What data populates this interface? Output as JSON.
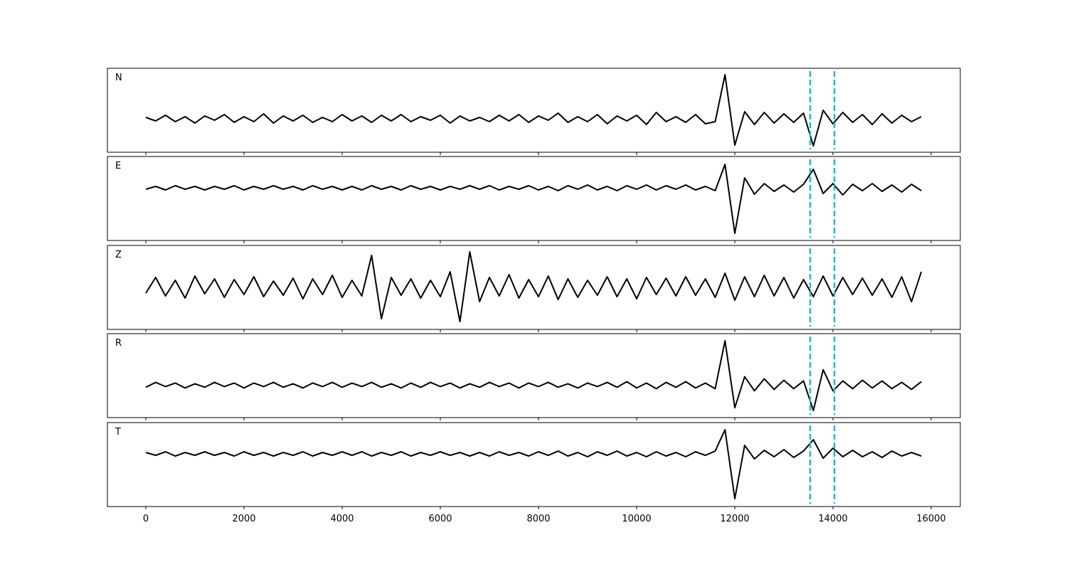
{
  "chart_data": [
    {
      "type": "line",
      "title": "N",
      "color": "#000000",
      "vline_color": "#17becf",
      "vline_style": "dashed",
      "vlines": [
        13536,
        14029
      ],
      "xlim": [
        -783,
        16594
      ],
      "ylim": [
        -47,
        71
      ],
      "xticks": [
        0,
        2000,
        4000,
        6000,
        8000,
        10000,
        12000,
        14000,
        16000
      ],
      "x": [
        0,
        200,
        400,
        600,
        800,
        1000,
        1200,
        1400,
        1600,
        1800,
        2000,
        2200,
        2400,
        2600,
        2800,
        3000,
        3200,
        3400,
        3600,
        3800,
        4000,
        4200,
        4400,
        4600,
        4800,
        5000,
        5200,
        5400,
        5600,
        5800,
        6000,
        6200,
        6400,
        6600,
        6800,
        7000,
        7200,
        7400,
        7600,
        7800,
        8000,
        8200,
        8400,
        8600,
        8800,
        9000,
        9200,
        9400,
        9600,
        9800,
        10000,
        10200,
        10400,
        10600,
        10800,
        11000,
        11200,
        11400,
        11600,
        11800,
        12000,
        12200,
        12400,
        12600,
        12800,
        13000,
        13200,
        13400,
        13600,
        13800,
        14000,
        14200,
        14400,
        14600,
        14800,
        15000,
        15200,
        15400,
        15600,
        15800
      ],
      "values": [
        2,
        -3,
        5,
        -4,
        3,
        -6,
        4,
        -2,
        6,
        -5,
        3,
        -4,
        7,
        -6,
        4,
        -3,
        5,
        -5,
        2,
        -4,
        6,
        -3,
        4,
        -5,
        5,
        -3,
        6,
        -4,
        3,
        -2,
        5,
        -6,
        4,
        -3,
        2,
        -4,
        5,
        -3,
        6,
        -5,
        4,
        -2,
        8,
        -5,
        3,
        -4,
        6,
        -7,
        4,
        -3,
        5,
        -8,
        9,
        -4,
        3,
        -5,
        6,
        -7,
        -4,
        62,
        -37,
        10,
        -8,
        9,
        -6,
        7,
        -5,
        8,
        -38,
        12,
        -7,
        9,
        -5,
        6,
        -8,
        7,
        -6,
        5,
        -4,
        3
      ]
    },
    {
      "type": "line",
      "title": "E",
      "color": "#000000",
      "vline_color": "#17becf",
      "vline_style": "dashed",
      "vlines": [
        13536,
        14029
      ],
      "xlim": [
        -783,
        16594
      ],
      "ylim": [
        -74,
        44
      ],
      "xticks": [
        0,
        2000,
        4000,
        6000,
        8000,
        10000,
        12000,
        14000,
        16000
      ],
      "x": [
        0,
        200,
        400,
        600,
        800,
        1000,
        1200,
        1400,
        1600,
        1800,
        2000,
        2200,
        2400,
        2600,
        2800,
        3000,
        3200,
        3400,
        3600,
        3800,
        4000,
        4200,
        4400,
        4600,
        4800,
        5000,
        5200,
        5400,
        5600,
        5800,
        6000,
        6200,
        6400,
        6600,
        6800,
        7000,
        7200,
        7400,
        7600,
        7800,
        8000,
        8200,
        8400,
        8600,
        8800,
        9000,
        9200,
        9400,
        9600,
        9800,
        10000,
        10200,
        10400,
        10600,
        10800,
        11000,
        11200,
        11400,
        11600,
        11800,
        12000,
        12200,
        12400,
        12600,
        12800,
        13000,
        13200,
        13400,
        13600,
        13800,
        14000,
        14200,
        14400,
        14600,
        14800,
        15000,
        15200,
        15400,
        15600,
        15800
      ],
      "values": [
        -2,
        2,
        -3,
        3,
        -2,
        2,
        -3,
        2,
        -2,
        3,
        -3,
        2,
        -2,
        3,
        -2,
        2,
        -3,
        3,
        -2,
        2,
        -3,
        2,
        -3,
        3,
        -2,
        2,
        -3,
        3,
        -2,
        2,
        -3,
        2,
        -2,
        3,
        -2,
        3,
        -3,
        2,
        -2,
        3,
        -3,
        2,
        -4,
        3,
        -2,
        4,
        -3,
        2,
        -4,
        3,
        -2,
        4,
        -3,
        3,
        -2,
        4,
        -3,
        2,
        -4,
        33,
        -64,
        14,
        -9,
        6,
        -5,
        4,
        -6,
        5,
        26,
        -8,
        6,
        -10,
        5,
        -4,
        6,
        -5,
        4,
        -6,
        5,
        -4
      ]
    },
    {
      "type": "line",
      "title": "Z",
      "color": "#000000",
      "vline_color": "#17becf",
      "vline_style": "dashed",
      "vlines": [
        13536,
        14029
      ],
      "xlim": [
        -783,
        16594
      ],
      "ylim": [
        -59,
        59
      ],
      "xticks": [
        0,
        2000,
        4000,
        6000,
        8000,
        10000,
        12000,
        14000,
        16000
      ],
      "x": [
        0,
        200,
        400,
        600,
        800,
        1000,
        1200,
        1400,
        1600,
        1800,
        2000,
        2200,
        2400,
        2600,
        2800,
        3000,
        3200,
        3400,
        3600,
        3800,
        4000,
        4200,
        4400,
        4600,
        4800,
        5000,
        5200,
        5400,
        5600,
        5800,
        6000,
        6200,
        6400,
        6600,
        6800,
        7000,
        7200,
        7400,
        7600,
        7800,
        8000,
        8200,
        8400,
        8600,
        8800,
        9000,
        9200,
        9400,
        9600,
        9800,
        10000,
        10200,
        10400,
        10600,
        10800,
        11000,
        11200,
        11400,
        11600,
        11800,
        12000,
        12200,
        12400,
        12600,
        12800,
        13000,
        13200,
        13400,
        13600,
        13800,
        14000,
        14200,
        14400,
        14600,
        14800,
        15000,
        15200,
        15400,
        15600,
        15800
      ],
      "values": [
        -8,
        14,
        -12,
        10,
        -15,
        16,
        -9,
        12,
        -14,
        11,
        -10,
        15,
        -13,
        9,
        -11,
        13,
        -16,
        12,
        -10,
        17,
        -14,
        10,
        -12,
        45,
        -44,
        14,
        -11,
        12,
        -15,
        10,
        -13,
        22,
        -48,
        50,
        -20,
        14,
        -12,
        18,
        -15,
        11,
        -13,
        16,
        -17,
        12,
        -14,
        10,
        -11,
        15,
        -13,
        12,
        -16,
        14,
        -10,
        13,
        -12,
        15,
        -11,
        12,
        -14,
        20,
        -18,
        15,
        -13,
        17,
        -12,
        14,
        -15,
        11,
        -13,
        16,
        -12,
        14,
        -10,
        13,
        -11,
        12,
        -14,
        15,
        -20,
        22
      ]
    },
    {
      "type": "line",
      "title": "R",
      "color": "#000000",
      "vline_color": "#17becf",
      "vline_style": "dashed",
      "vlines": [
        13536,
        14029
      ],
      "xlim": [
        -783,
        16594
      ],
      "ylim": [
        -46,
        73
      ],
      "xticks": [
        0,
        2000,
        4000,
        6000,
        8000,
        10000,
        12000,
        14000,
        16000
      ],
      "x": [
        0,
        200,
        400,
        600,
        800,
        1000,
        1200,
        1400,
        1600,
        1800,
        2000,
        2200,
        2400,
        2600,
        2800,
        3000,
        3200,
        3400,
        3600,
        3800,
        4000,
        4200,
        4400,
        4600,
        4800,
        5000,
        5200,
        5400,
        5600,
        5800,
        6000,
        6200,
        6400,
        6600,
        6800,
        7000,
        7200,
        7400,
        7600,
        7800,
        8000,
        8200,
        8400,
        8600,
        8800,
        9000,
        9200,
        9400,
        9600,
        9800,
        10000,
        10200,
        10400,
        10600,
        10800,
        11000,
        11200,
        11400,
        11600,
        11800,
        12000,
        12200,
        12400,
        12600,
        12800,
        13000,
        13200,
        13400,
        13600,
        13800,
        14000,
        14200,
        14400,
        14600,
        14800,
        15000,
        15200,
        15400,
        15600,
        15800
      ],
      "values": [
        -3,
        4,
        -2,
        3,
        -4,
        2,
        -3,
        4,
        -2,
        3,
        -4,
        3,
        -2,
        4,
        -3,
        2,
        -4,
        3,
        -2,
        4,
        -3,
        3,
        -2,
        4,
        -3,
        2,
        -4,
        3,
        -3,
        4,
        -2,
        3,
        -4,
        2,
        -3,
        4,
        -2,
        3,
        -4,
        3,
        -2,
        4,
        -3,
        2,
        -4,
        3,
        -2,
        4,
        -3,
        5,
        -4,
        3,
        -5,
        4,
        -3,
        5,
        -4,
        3,
        -5,
        63,
        -32,
        12,
        -8,
        9,
        -6,
        7,
        -5,
        6,
        -36,
        22,
        -8,
        6,
        -5,
        7,
        -4,
        6,
        -5,
        4,
        -6,
        5
      ]
    },
    {
      "type": "line",
      "title": "T",
      "color": "#000000",
      "vline_color": "#17becf",
      "vline_style": "dashed",
      "vlines": [
        13536,
        14029
      ],
      "xlim": [
        -783,
        16594
      ],
      "ylim": [
        -74,
        44
      ],
      "xticks": [
        0,
        2000,
        4000,
        6000,
        8000,
        10000,
        12000,
        14000,
        16000
      ],
      "x": [
        0,
        200,
        400,
        600,
        800,
        1000,
        1200,
        1400,
        1600,
        1800,
        2000,
        2200,
        2400,
        2600,
        2800,
        3000,
        3200,
        3400,
        3600,
        3800,
        4000,
        4200,
        4400,
        4600,
        4800,
        5000,
        5200,
        5400,
        5600,
        5800,
        6000,
        6200,
        6400,
        6600,
        6800,
        7000,
        7200,
        7400,
        7600,
        7800,
        8000,
        8200,
        8400,
        8600,
        8800,
        9000,
        9200,
        9400,
        9600,
        9800,
        10000,
        10200,
        10400,
        10600,
        10800,
        11000,
        11200,
        11400,
        11600,
        11800,
        12000,
        12200,
        12400,
        12600,
        12800,
        13000,
        13200,
        13400,
        13600,
        13800,
        14000,
        14200,
        14400,
        14600,
        14800,
        15000,
        15200,
        15400,
        15600,
        15800
      ],
      "values": [
        2,
        -2,
        3,
        -3,
        2,
        -2,
        3,
        -2,
        2,
        -3,
        3,
        -2,
        2,
        -3,
        2,
        -2,
        3,
        -3,
        2,
        -2,
        3,
        -2,
        3,
        -3,
        2,
        -2,
        3,
        -3,
        2,
        -2,
        3,
        -2,
        2,
        -3,
        2,
        -3,
        3,
        -2,
        2,
        -3,
        3,
        -2,
        4,
        -3,
        2,
        -4,
        3,
        -2,
        4,
        -3,
        2,
        -4,
        3,
        -3,
        2,
        -4,
        3,
        -2,
        4,
        34,
        -63,
        12,
        -7,
        5,
        -4,
        6,
        -5,
        4,
        20,
        -6,
        8,
        -4,
        5,
        -4,
        3,
        -5,
        4,
        -3,
        2,
        -3
      ]
    }
  ]
}
